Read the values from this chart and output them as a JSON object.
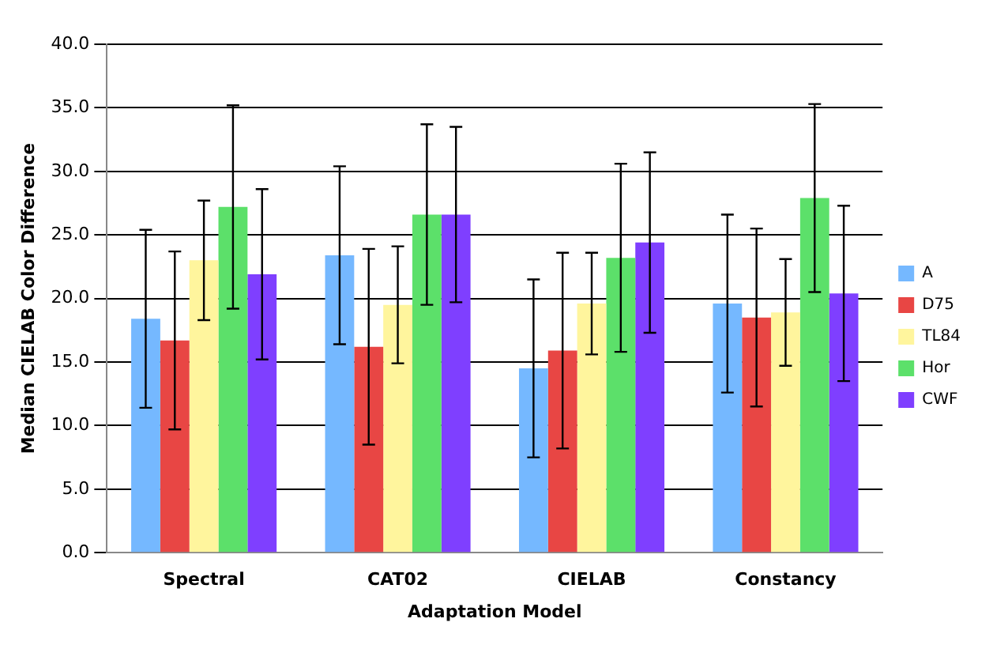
{
  "chart_data": {
    "type": "bar",
    "xlabel": "Adaptation Model",
    "ylabel": "Median CIELAB Color Difference",
    "categories": [
      "Spectral",
      "CAT02",
      "CIELAB",
      "Constancy"
    ],
    "series": [
      {
        "name": "A",
        "color": "#75b8ff",
        "values": [
          18.4,
          23.4,
          14.5,
          19.6
        ],
        "errors": [
          7.0,
          7.0,
          7.0,
          7.0
        ]
      },
      {
        "name": "D75",
        "color": "#e84644",
        "values": [
          16.7,
          16.2,
          15.9,
          18.5
        ],
        "errors": [
          7.0,
          7.7,
          7.7,
          7.0
        ]
      },
      {
        "name": "TL84",
        "color": "#fff59d",
        "values": [
          23.0,
          19.5,
          19.6,
          18.9
        ],
        "errors": [
          4.7,
          4.6,
          4.0,
          4.2
        ]
      },
      {
        "name": "Hor",
        "color": "#5ce06a",
        "values": [
          27.2,
          26.6,
          23.2,
          27.9
        ],
        "errors": [
          8.0,
          7.1,
          7.4,
          7.4
        ]
      },
      {
        "name": "CWF",
        "color": "#7f3fff",
        "values": [
          21.9,
          26.6,
          24.4,
          20.4
        ],
        "errors": [
          6.7,
          6.9,
          7.1,
          6.9
        ]
      }
    ],
    "ylim": [
      0,
      40
    ],
    "yticks": [
      {
        "value": 0,
        "label": "0.0"
      },
      {
        "value": 5,
        "label": "5.0"
      },
      {
        "value": 10,
        "label": "10.0"
      },
      {
        "value": 15,
        "label": "15.0"
      },
      {
        "value": 20,
        "label": "20.0"
      },
      {
        "value": 25,
        "label": "25.0"
      },
      {
        "value": 30,
        "label": "30.0"
      },
      {
        "value": 35,
        "label": "35.0"
      },
      {
        "value": 40,
        "label": "40.0"
      }
    ],
    "grid": "y",
    "legend": "right"
  }
}
